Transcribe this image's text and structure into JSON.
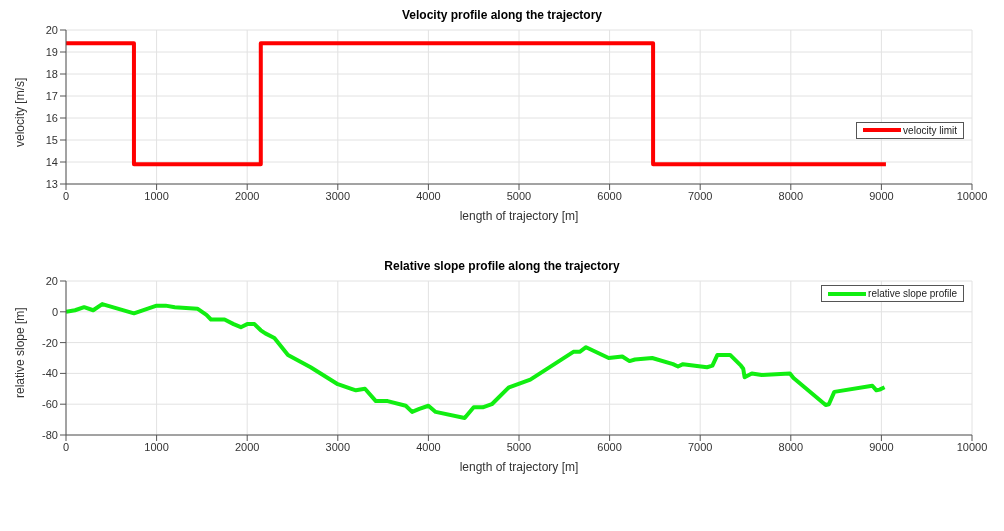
{
  "chart_data": [
    {
      "type": "step",
      "title": "Velocity profile along the trajectory",
      "xlabel": "length of trajectory [m]",
      "ylabel": "velocity [m/s]",
      "series": [
        {
          "name": "velocity limit",
          "color": "#ff0000",
          "x": [
            0,
            750,
            2150,
            6480,
            9050
          ],
          "values": [
            19.4,
            13.9,
            19.4,
            13.9,
            13.9
          ]
        }
      ],
      "xlim": [
        0,
        10000
      ],
      "xticks": [
        0,
        1000,
        2000,
        3000,
        4000,
        5000,
        6000,
        7000,
        8000,
        9000,
        10000
      ],
      "ylim": [
        13,
        20
      ],
      "yticks": [
        13,
        14,
        15,
        16,
        17,
        18,
        19,
        20
      ],
      "grid": true,
      "legend": "right"
    },
    {
      "type": "line",
      "title": "Relative slope profile along the trajectory",
      "xlabel": "length of trajectory [m]",
      "ylabel": "relative slope [m]",
      "series": [
        {
          "name": "relative slope profile",
          "color": "#11ee11",
          "x": [
            0,
            100,
            200,
            300,
            400,
            750,
            1000,
            1100,
            1200,
            1450,
            1550,
            1600,
            1750,
            1850,
            1930,
            2000,
            2080,
            2150,
            2200,
            2300,
            2450,
            2700,
            3000,
            3150,
            3200,
            3300,
            3420,
            3550,
            3750,
            3820,
            3900,
            4000,
            4080,
            4400,
            4500,
            4600,
            4700,
            4890,
            5125,
            5600,
            5670,
            5740,
            5990,
            6140,
            6220,
            6280,
            6470,
            6700,
            6755,
            6810,
            7075,
            7135,
            7190,
            7330,
            7450,
            7475,
            7490,
            7570,
            7680,
            7990,
            8030,
            8385,
            8420,
            8480,
            8900,
            8945,
            8980,
            9035
          ],
          "values": [
            0,
            1,
            3,
            1,
            5,
            -1,
            4,
            4,
            3,
            2,
            -2,
            -5,
            -5,
            -8,
            -10,
            -8,
            -8,
            -12,
            -14,
            -17,
            -28,
            -36,
            -47,
            -50,
            -51,
            -50,
            -58,
            -58,
            -61,
            -65,
            -63,
            -61,
            -65,
            -69,
            -62,
            -62,
            -60,
            -49,
            -44,
            -26,
            -26,
            -23,
            -30,
            -29,
            -32,
            -31,
            -30,
            -34,
            -35.5,
            -34,
            -36,
            -35,
            -28,
            -28,
            -35,
            -37,
            -42.5,
            -40,
            -41,
            -40,
            -43,
            -60.5,
            -60,
            -52,
            -48,
            -51,
            -50.5,
            -49
          ]
        }
      ],
      "xlim": [
        0,
        10000
      ],
      "xticks": [
        0,
        1000,
        2000,
        3000,
        4000,
        5000,
        6000,
        7000,
        8000,
        9000,
        10000
      ],
      "ylim": [
        -80,
        20
      ],
      "yticks": [
        -80,
        -60,
        -40,
        -20,
        0,
        20
      ],
      "grid": true,
      "legend": "top right"
    }
  ]
}
